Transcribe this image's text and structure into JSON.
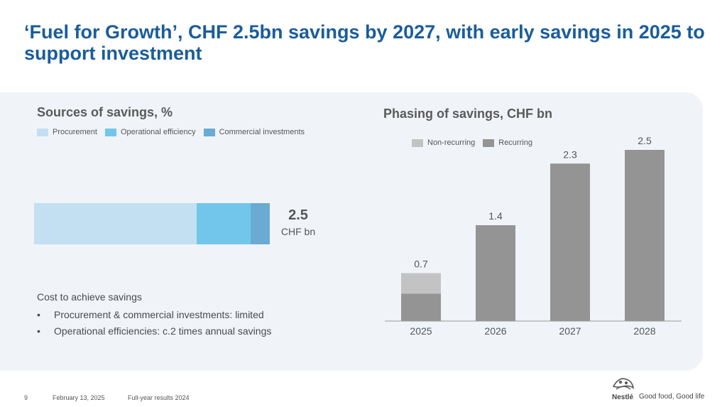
{
  "title": "‘Fuel for Growth’, CHF 2.5bn savings by 2027, with early savings in 2025 to support investment",
  "left": {
    "title": "Sources of savings, %",
    "legend": [
      "Procurement",
      "Operational efficiency",
      "Commercial investments"
    ],
    "total_value": "2.5",
    "total_unit": "CHF bn",
    "cost_title": "Cost to achieve savings",
    "cost_items": [
      "Procurement & commercial investments: limited",
      "Operational efficiencies: c.2 times annual savings"
    ]
  },
  "right": {
    "title": "Phasing of savings, CHF bn",
    "legend": [
      "Non-recurring",
      "Recurring"
    ]
  },
  "colors": {
    "procurement": "#c2e0f2",
    "operational": "#72c6ec",
    "commercial": "#6aaad3",
    "non_recurring": "#c3c3c3",
    "recurring": "#949494",
    "title_blue": "#1a5d9b"
  },
  "chart_data": [
    {
      "type": "bar",
      "orientation": "horizontal-stacked",
      "title": "Sources of savings, %",
      "series": [
        {
          "name": "Procurement",
          "values": [
            69
          ]
        },
        {
          "name": "Operational efficiency",
          "values": [
            23
          ]
        },
        {
          "name": "Commercial investments",
          "values": [
            8
          ]
        }
      ],
      "total_label": "2.5",
      "unit": "CHF bn"
    },
    {
      "type": "bar",
      "title": "Phasing of savings, CHF bn",
      "categories": [
        "2025",
        "2026",
        "2027",
        "2028"
      ],
      "series": [
        {
          "name": "Recurring",
          "values": [
            0.4,
            1.4,
            2.3,
            2.5
          ]
        },
        {
          "name": "Non-recurring",
          "values": [
            0.3,
            0,
            0,
            0
          ]
        }
      ],
      "totals": [
        "0.7",
        "1.4",
        "2.3",
        "2.5"
      ],
      "ylim": [
        0,
        2.5
      ],
      "legend": "top-left"
    }
  ],
  "footer": {
    "page": "9",
    "date": "February 13, 2025",
    "doc": "Full-year results 2024",
    "brand": "Nestlé",
    "tagline": "Good food, Good life"
  }
}
